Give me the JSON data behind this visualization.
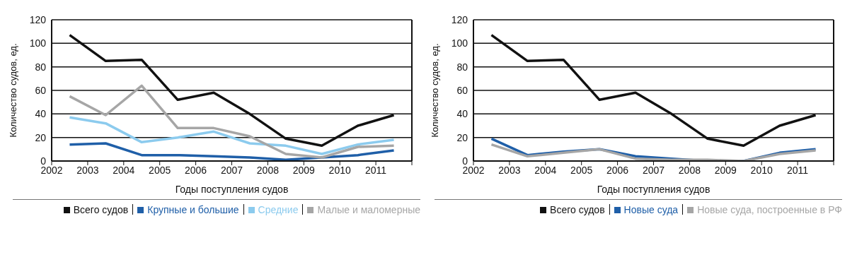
{
  "chart_data": [
    {
      "type": "line",
      "xlabel": "Годы поступления судов",
      "ylabel": "Количество судов, ед.",
      "x": [
        2002.5,
        2003.5,
        2004.5,
        2005.5,
        2006.5,
        2007.5,
        2008.5,
        2009.5,
        2010.5,
        2011.5
      ],
      "xlim": [
        2002,
        2012
      ],
      "xticks": [
        2002,
        2003,
        2004,
        2005,
        2006,
        2007,
        2008,
        2009,
        2010,
        2011,
        {
          "value": 2012,
          "label": null
        }
      ],
      "ylim": [
        0,
        120
      ],
      "yticks": [
        0,
        20,
        40,
        60,
        80,
        100,
        120
      ],
      "grid": "y",
      "legend": "bottom",
      "marker": "none",
      "series": [
        {
          "name": "Всего судов",
          "color": "#111111",
          "values": [
            107,
            85,
            86,
            52,
            58,
            40,
            19,
            13,
            30,
            39
          ]
        },
        {
          "name": "Крупные и большие",
          "color": "#1f5fa8",
          "values": [
            14,
            15,
            5,
            5,
            4,
            3,
            1,
            3,
            5,
            9
          ]
        },
        {
          "name": "Средние",
          "color": "#8ccbee",
          "values": [
            37,
            32,
            16,
            20,
            25,
            15,
            13,
            6,
            14,
            18
          ]
        },
        {
          "name": "Малые и маломерные",
          "color": "#a6a6a6",
          "values": [
            55,
            39,
            64,
            28,
            28,
            21,
            6,
            3,
            12,
            13
          ]
        }
      ]
    },
    {
      "type": "line",
      "xlabel": "Годы поступления судов",
      "ylabel": "Количество судов, ед.",
      "x": [
        2002.5,
        2003.5,
        2004.5,
        2005.5,
        2006.5,
        2007.5,
        2008.5,
        2009.5,
        2010.5,
        2011.5
      ],
      "xlim": [
        2002,
        2012
      ],
      "xticks": [
        2002,
        2003,
        2004,
        2005,
        2006,
        2007,
        2008,
        2009,
        2010,
        2011,
        {
          "value": 2012,
          "label": null
        }
      ],
      "ylim": [
        0,
        120
      ],
      "yticks": [
        0,
        20,
        40,
        60,
        80,
        100,
        120
      ],
      "grid": "y",
      "legend": "bottom",
      "marker": "none",
      "series": [
        {
          "name": "Всего судов",
          "color": "#111111",
          "values": [
            107,
            85,
            86,
            52,
            58,
            40,
            19,
            13,
            30,
            39
          ]
        },
        {
          "name": "Новые суда",
          "color": "#1f5fa8",
          "values": [
            19,
            5,
            8,
            10,
            4,
            2,
            0,
            0,
            7,
            10
          ]
        },
        {
          "name": "Новые суда, построенные в РФ",
          "color": "#a6a6a6",
          "values": [
            14,
            4,
            7,
            10,
            2,
            1,
            1,
            0,
            6,
            9
          ]
        }
      ]
    }
  ]
}
